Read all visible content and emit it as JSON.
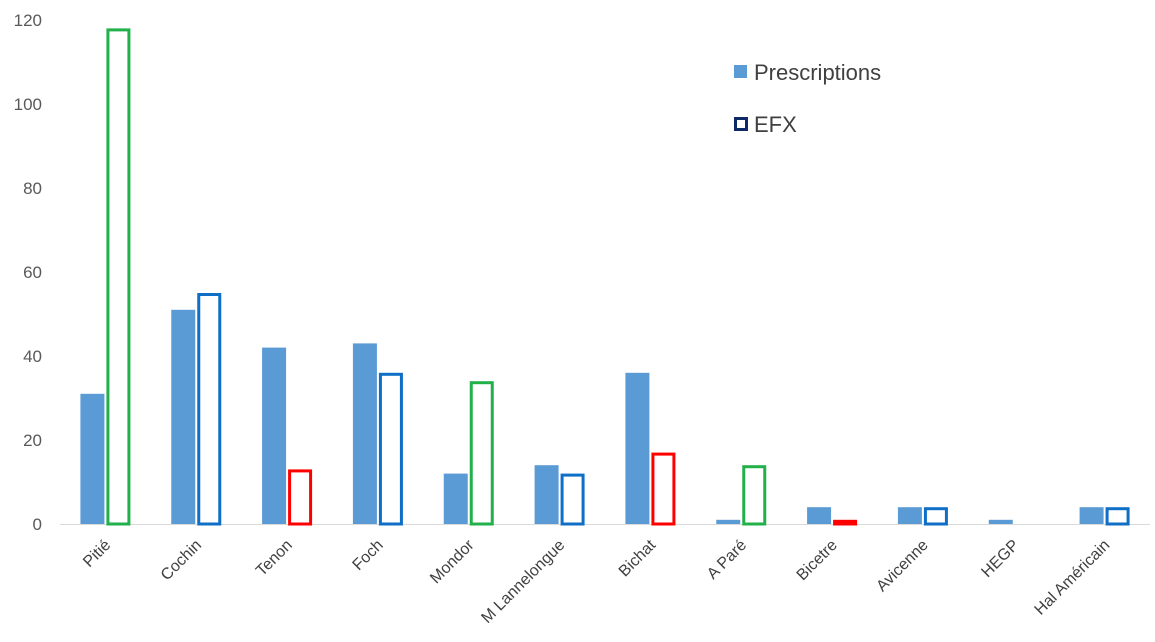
{
  "chart_data": {
    "type": "bar",
    "title": "",
    "xlabel": "",
    "ylabel": "",
    "ylim": [
      0,
      120
    ],
    "y_ticks": [
      "0",
      "20",
      "40",
      "60",
      "80",
      "100",
      "120"
    ],
    "grid": false,
    "legend_position": "top-right",
    "categories": [
      "Pitié",
      "Cochin",
      "Tenon",
      "Foch",
      "Mondor",
      "M Lannelongue",
      "Bichat",
      "A Paré",
      "Bicetre",
      "Avicenne",
      "HEGP",
      "Hal Américain"
    ],
    "series": [
      {
        "name": "Prescriptions",
        "style": "filled",
        "color": "#5b9bd5",
        "values": [
          31,
          51,
          42,
          43,
          12,
          14,
          36,
          1,
          4,
          4,
          1,
          4
        ]
      },
      {
        "name": "EFX",
        "style": "outline",
        "legend_color": "#0d2a66",
        "values": [
          118,
          55,
          13,
          36,
          34,
          12,
          17,
          14,
          1,
          4,
          0,
          4
        ],
        "bar_colors": [
          "#22b04b",
          "#0f6fc6",
          "#ff0000",
          "#0f6fc6",
          "#22b04b",
          "#0f6fc6",
          "#ff0000",
          "#22b04b",
          "#ff0000",
          "#0f6fc6",
          "#0f6fc6",
          "#0f6fc6"
        ]
      }
    ],
    "axis_color": "#d9d9d9"
  }
}
